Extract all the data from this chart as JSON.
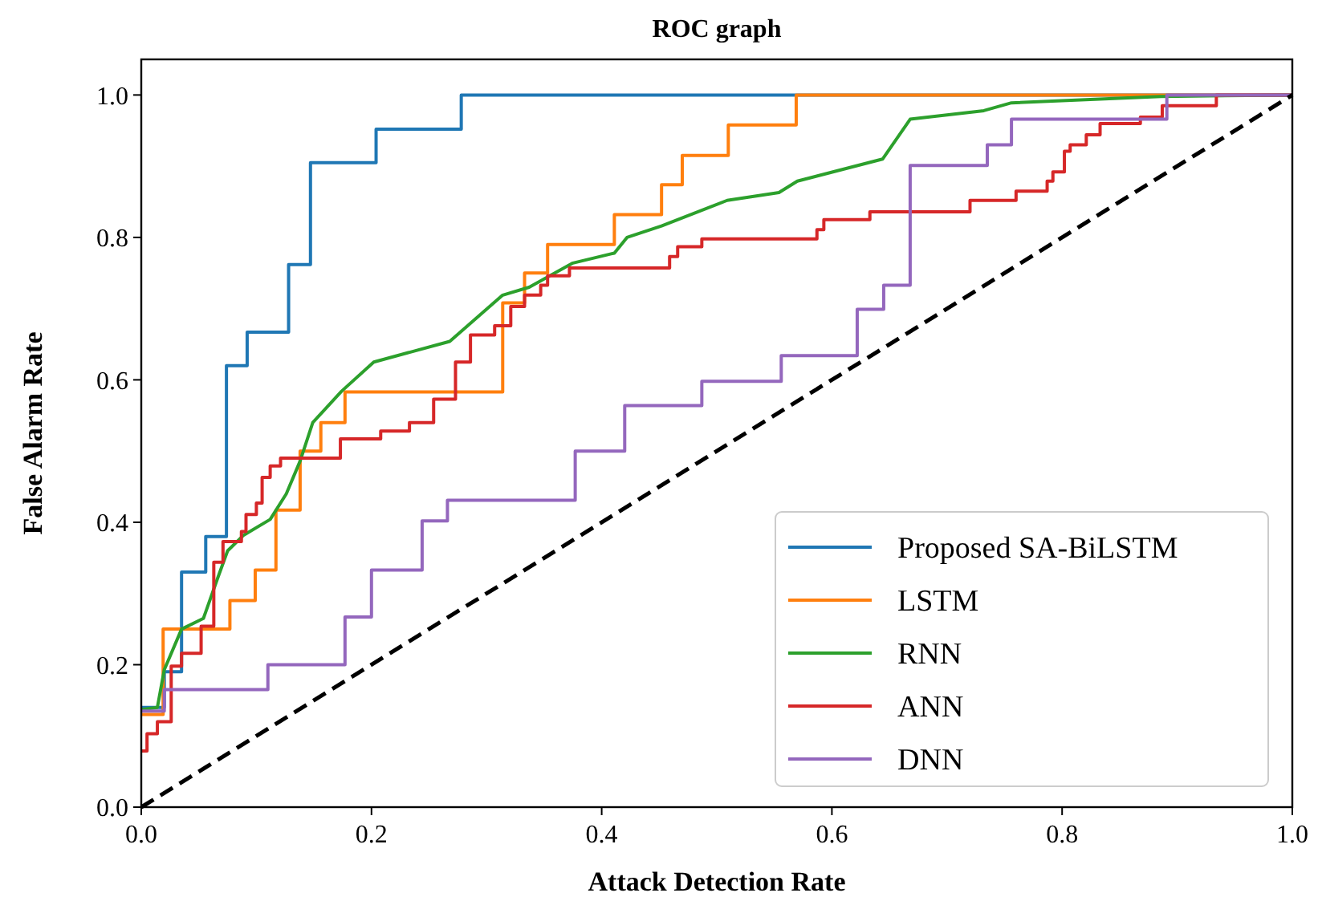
{
  "chart_data": {
    "type": "line",
    "title": "ROC graph",
    "xlabel": "Attack Detection Rate",
    "ylabel": "False Alarm Rate",
    "xlim": [
      0,
      1
    ],
    "ylim": [
      0,
      1.05
    ],
    "xticks": [
      {
        "value": 0,
        "label": "0.0"
      },
      {
        "value": 0.2,
        "label": "0.2"
      },
      {
        "value": 0.4,
        "label": "0.4"
      },
      {
        "value": 0.6,
        "label": "0.6"
      },
      {
        "value": 0.8,
        "label": "0.8"
      },
      {
        "value": 1,
        "label": "1.0"
      }
    ],
    "yticks": [
      {
        "value": 0,
        "label": "0.0"
      },
      {
        "value": 0.2,
        "label": "0.2"
      },
      {
        "value": 0.4,
        "label": "0.4"
      },
      {
        "value": 0.6,
        "label": "0.6"
      },
      {
        "value": 0.8,
        "label": "0.8"
      },
      {
        "value": 1,
        "label": "1.0"
      }
    ],
    "grid": false,
    "legend": "bottom right",
    "marker": "none",
    "series": [
      {
        "name": "Proposed SA-BiLSTM",
        "color": "#1f77b4",
        "x": [
          0,
          0.02,
          0.02,
          0.035,
          0.035,
          0.056,
          0.056,
          0.074,
          0.074,
          0.092,
          0.092,
          0.128,
          0.128,
          0.147,
          0.147,
          0.204,
          0.204,
          0.278,
          0.278,
          1
        ],
        "values": [
          0.14,
          0.14,
          0.19,
          0.19,
          0.33,
          0.33,
          0.38,
          0.38,
          0.62,
          0.62,
          0.667,
          0.667,
          0.762,
          0.762,
          0.905,
          0.905,
          0.952,
          0.952,
          1,
          1
        ]
      },
      {
        "name": "LSTM",
        "color": "#ff7f0e",
        "x": [
          0,
          0.019,
          0.019,
          0.077,
          0.077,
          0.099,
          0.099,
          0.117,
          0.117,
          0.138,
          0.138,
          0.156,
          0.156,
          0.177,
          0.177,
          0.314,
          0.314,
          0.333,
          0.333,
          0.353,
          0.353,
          0.411,
          0.411,
          0.452,
          0.452,
          0.47,
          0.47,
          0.51,
          0.51,
          0.569,
          0.569,
          1
        ],
        "values": [
          0.13,
          0.13,
          0.25,
          0.25,
          0.29,
          0.29,
          0.333,
          0.333,
          0.417,
          0.417,
          0.5,
          0.5,
          0.54,
          0.54,
          0.583,
          0.583,
          0.708,
          0.708,
          0.75,
          0.75,
          0.79,
          0.79,
          0.832,
          0.832,
          0.874,
          0.874,
          0.915,
          0.915,
          0.958,
          0.958,
          1,
          1
        ]
      },
      {
        "name": "RNN",
        "color": "#2ca02c",
        "x": [
          0,
          0.014,
          0.02,
          0.035,
          0.054,
          0.066,
          0.075,
          0.089,
          0.112,
          0.126,
          0.138,
          0.149,
          0.174,
          0.202,
          0.268,
          0.314,
          0.337,
          0.375,
          0.411,
          0.422,
          0.452,
          0.509,
          0.554,
          0.57,
          0.644,
          0.668,
          0.732,
          0.756,
          0.886,
          1
        ],
        "values": [
          0.137,
          0.14,
          0.193,
          0.25,
          0.265,
          0.32,
          0.36,
          0.382,
          0.404,
          0.44,
          0.486,
          0.54,
          0.584,
          0.625,
          0.654,
          0.719,
          0.73,
          0.764,
          0.778,
          0.8,
          0.816,
          0.852,
          0.863,
          0.879,
          0.91,
          0.966,
          0.978,
          0.989,
          0.998,
          1
        ]
      },
      {
        "name": "ANN",
        "color": "#d62728",
        "x": [
          0,
          0.005,
          0.005,
          0.014,
          0.014,
          0.026,
          0.026,
          0.035,
          0.035,
          0.052,
          0.052,
          0.063,
          0.063,
          0.071,
          0.071,
          0.087,
          0.087,
          0.091,
          0.091,
          0.1,
          0.1,
          0.105,
          0.105,
          0.112,
          0.112,
          0.121,
          0.121,
          0.173,
          0.173,
          0.208,
          0.208,
          0.233,
          0.233,
          0.254,
          0.254,
          0.273,
          0.273,
          0.286,
          0.286,
          0.307,
          0.307,
          0.321,
          0.321,
          0.333,
          0.333,
          0.347,
          0.347,
          0.353,
          0.353,
          0.372,
          0.372,
          0.459,
          0.459,
          0.466,
          0.466,
          0.487,
          0.487,
          0.587,
          0.587,
          0.593,
          0.593,
          0.633,
          0.633,
          0.72,
          0.72,
          0.76,
          0.76,
          0.787,
          0.787,
          0.792,
          0.792,
          0.802,
          0.802,
          0.807,
          0.807,
          0.821,
          0.821,
          0.833,
          0.833,
          0.868,
          0.868,
          0.887,
          0.887,
          0.934,
          0.934,
          1
        ],
        "values": [
          0.079,
          0.079,
          0.103,
          0.103,
          0.12,
          0.12,
          0.198,
          0.198,
          0.216,
          0.216,
          0.254,
          0.254,
          0.344,
          0.344,
          0.373,
          0.373,
          0.387,
          0.387,
          0.411,
          0.411,
          0.427,
          0.427,
          0.463,
          0.463,
          0.479,
          0.479,
          0.49,
          0.49,
          0.517,
          0.517,
          0.528,
          0.528,
          0.54,
          0.54,
          0.573,
          0.573,
          0.625,
          0.625,
          0.663,
          0.663,
          0.676,
          0.676,
          0.703,
          0.703,
          0.719,
          0.719,
          0.733,
          0.733,
          0.746,
          0.746,
          0.757,
          0.757,
          0.773,
          0.773,
          0.787,
          0.787,
          0.798,
          0.798,
          0.811,
          0.811,
          0.825,
          0.825,
          0.836,
          0.836,
          0.852,
          0.852,
          0.865,
          0.865,
          0.879,
          0.879,
          0.892,
          0.892,
          0.921,
          0.921,
          0.93,
          0.93,
          0.944,
          0.944,
          0.96,
          0.96,
          0.969,
          0.969,
          0.985,
          0.985,
          1,
          1
        ]
      },
      {
        "name": "DNN",
        "color": "#9467bd",
        "x": [
          0,
          0.02,
          0.02,
          0.11,
          0.11,
          0.177,
          0.177,
          0.2,
          0.2,
          0.244,
          0.244,
          0.266,
          0.266,
          0.377,
          0.377,
          0.42,
          0.42,
          0.487,
          0.487,
          0.556,
          0.556,
          0.622,
          0.622,
          0.645,
          0.645,
          0.668,
          0.668,
          0.735,
          0.735,
          0.756,
          0.756,
          0.891,
          0.891,
          1
        ],
        "values": [
          0.135,
          0.135,
          0.165,
          0.165,
          0.2,
          0.2,
          0.267,
          0.267,
          0.333,
          0.333,
          0.402,
          0.402,
          0.431,
          0.431,
          0.5,
          0.5,
          0.564,
          0.564,
          0.598,
          0.598,
          0.634,
          0.634,
          0.699,
          0.699,
          0.733,
          0.733,
          0.901,
          0.901,
          0.93,
          0.93,
          0.966,
          0.966,
          1,
          1
        ]
      },
      {
        "color": "#000000",
        "line_style": "dashed",
        "x": [
          0,
          1
        ],
        "values": [
          0,
          1
        ]
      }
    ]
  }
}
